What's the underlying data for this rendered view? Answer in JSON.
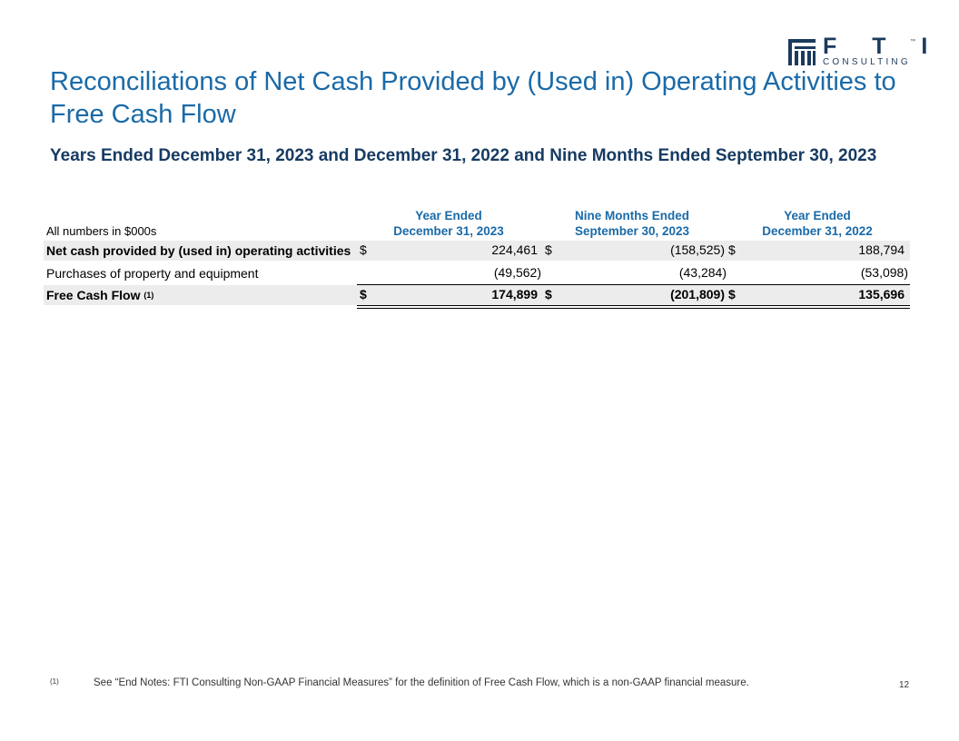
{
  "logo": {
    "wordmark": "F T I",
    "tagline": "CONSULTING",
    "trademark": "™",
    "color": "#1c3a5e"
  },
  "title": "Reconciliations of Net Cash Provided by (Used in) Operating Activities to Free Cash Flow",
  "subtitle": "Years Ended December 31, 2023 and December 31, 2022 and Nine Months Ended September 30, 2023",
  "table": {
    "units_label": "All numbers in $000s",
    "columns": [
      {
        "line1": "Year Ended",
        "line2": "December 31, 2023"
      },
      {
        "line1": "Nine Months Ended",
        "line2": "September 30, 2023"
      },
      {
        "line1": "Year Ended",
        "line2": "December 31, 2022"
      }
    ],
    "rows": [
      {
        "label": "Net cash provided by (used in) operating activities",
        "currency": [
          "$",
          "$",
          "$"
        ],
        "values": [
          "224,461",
          "(158,525)",
          "188,794"
        ]
      },
      {
        "label": "Purchases of property and equipment",
        "currency": [
          "",
          "",
          ""
        ],
        "values": [
          "(49,562)",
          "(43,284)",
          "(53,098)"
        ]
      },
      {
        "label": "Free Cash Flow",
        "footnote_ref": "(1)",
        "currency": [
          "$",
          "$",
          "$"
        ],
        "values": [
          "174,899",
          "(201,809)",
          "135,696"
        ]
      }
    ]
  },
  "footnote": {
    "marker": "(1)",
    "text": "See “End Notes: FTI Consulting Non-GAAP Financial Measures” for the definition of Free Cash Flow, which is a non-GAAP financial measure."
  },
  "page_number": "12",
  "colors": {
    "title_blue": "#1a6aa8",
    "subtitle_navy": "#173b63",
    "row_shade": "#ececec"
  }
}
